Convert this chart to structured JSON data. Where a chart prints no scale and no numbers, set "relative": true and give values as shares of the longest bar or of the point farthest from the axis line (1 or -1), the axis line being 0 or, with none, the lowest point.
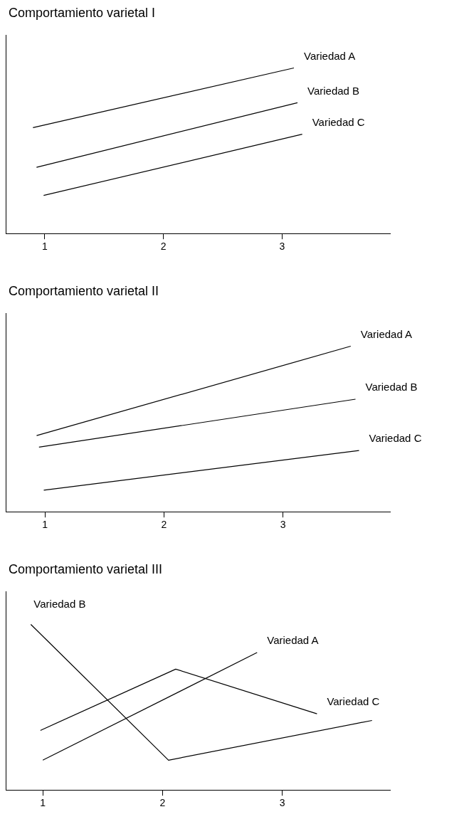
{
  "chart_data": [
    {
      "type": "line",
      "title": "Comportamiento varietal I",
      "relative": true,
      "xlim": [
        0.67,
        3.91
      ],
      "xticks": [
        1,
        2,
        3
      ],
      "grid": false,
      "legend": false,
      "tick_labels": "x",
      "marker": "none",
      "line_style": "solid",
      "series": [
        {
          "name": "Variedad A",
          "color": "#000000",
          "x": [
            0.9,
            3.1
          ],
          "values": [
            0.64,
            1
          ]
        },
        {
          "name": "Variedad B",
          "color": "#000000",
          "x": [
            0.93,
            3.13
          ],
          "values": [
            0.4,
            0.79
          ]
        },
        {
          "name": "Variedad C",
          "color": "#000000",
          "x": [
            0.99,
            3.17
          ],
          "values": [
            0.23,
            0.6
          ]
        }
      ]
    },
    {
      "type": "line",
      "title": "Comportamiento varietal II",
      "relative": true,
      "xlim": [
        0.67,
        3.9
      ],
      "xticks": [
        1,
        2,
        3
      ],
      "grid": false,
      "legend": false,
      "tick_labels": "x",
      "marker": "none",
      "line_style": "solid",
      "series": [
        {
          "name": "Variedad A",
          "color": "#000000",
          "x": [
            0.93,
            3.57
          ],
          "values": [
            0.46,
            1
          ]
        },
        {
          "name": "Variedad B",
          "color": "#000000",
          "x": [
            0.95,
            3.61
          ],
          "values": [
            0.39,
            0.68
          ]
        },
        {
          "name": "Variedad C",
          "color": "#000000",
          "x": [
            0.99,
            3.64
          ],
          "values": [
            0.13,
            0.37
          ]
        }
      ]
    },
    {
      "type": "line",
      "title": "Comportamiento varietal III",
      "relative": true,
      "xlim": [
        0.69,
        3.9
      ],
      "xticks": [
        1,
        2,
        3
      ],
      "grid": false,
      "legend": false,
      "tick_labels": "x",
      "marker": "none",
      "line_style": "solid",
      "series": [
        {
          "name": "Variedad B",
          "color": "#000000",
          "x": [
            0.9,
            2.05,
            3.75
          ],
          "values": [
            1,
            0.18,
            0.42
          ]
        },
        {
          "name": "Variedad C",
          "color": "#000000",
          "x": [
            0.98,
            2.11,
            3.29
          ],
          "values": [
            0.36,
            0.73,
            0.46
          ]
        },
        {
          "name": "Variedad A",
          "color": "#000000",
          "x": [
            1.0,
            2.79
          ],
          "values": [
            0.18,
            0.83
          ]
        }
      ]
    }
  ]
}
